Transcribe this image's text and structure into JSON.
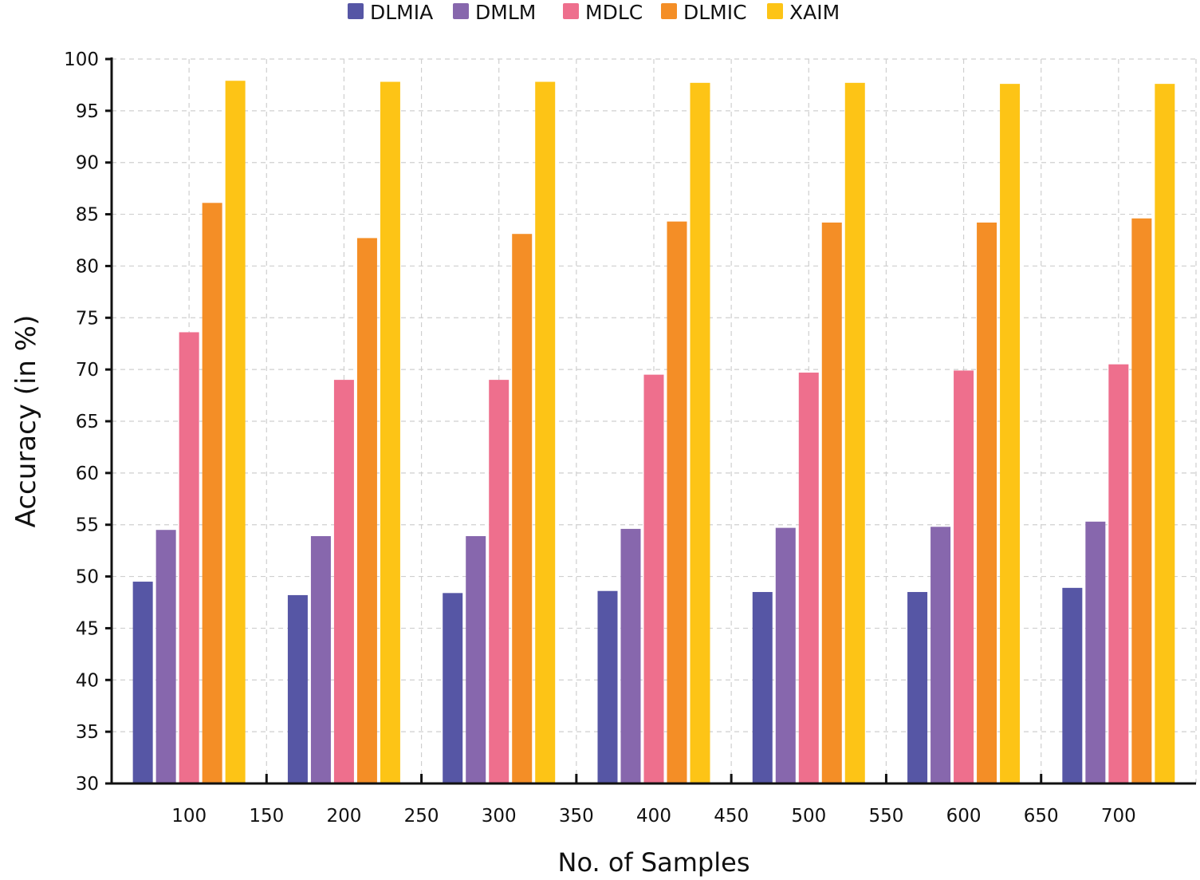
{
  "chart_data": {
    "type": "bar",
    "title": "",
    "xlabel": "No. of Samples",
    "ylabel": "Accuracy (in %)",
    "ylim": [
      30,
      100
    ],
    "yticks": [
      "30",
      "35",
      "40",
      "45",
      "50",
      "55",
      "60",
      "65",
      "70",
      "75",
      "80",
      "85",
      "90",
      "95",
      "100"
    ],
    "xlim": [
      50,
      750
    ],
    "xticks": [
      "100",
      "150",
      "200",
      "250",
      "300",
      "350",
      "400",
      "450",
      "500",
      "550",
      "600",
      "650",
      "700"
    ],
    "categories": [
      "100",
      "200",
      "300",
      "400",
      "500",
      "600",
      "700"
    ],
    "grid": true,
    "legend_position": "top-center",
    "series": [
      {
        "name": "DLMIA",
        "color": "#5656a5",
        "values": [
          49.5,
          48.2,
          48.4,
          48.6,
          48.5,
          48.5,
          48.9
        ]
      },
      {
        "name": "DMLM",
        "color": "#8767ad",
        "values": [
          54.5,
          53.9,
          53.9,
          54.6,
          54.7,
          54.8,
          55.3
        ]
      },
      {
        "name": "MDLC",
        "color": "#ee6f8d",
        "values": [
          73.6,
          69.0,
          69.0,
          69.5,
          69.7,
          69.9,
          70.5
        ]
      },
      {
        "name": "DLMIC",
        "color": "#f48e26",
        "values": [
          86.1,
          82.7,
          83.1,
          84.3,
          84.2,
          84.2,
          84.6
        ]
      },
      {
        "name": "XAIM",
        "color": "#fdc416",
        "values": [
          97.9,
          97.8,
          97.8,
          97.7,
          97.7,
          97.6,
          97.6
        ]
      }
    ]
  }
}
